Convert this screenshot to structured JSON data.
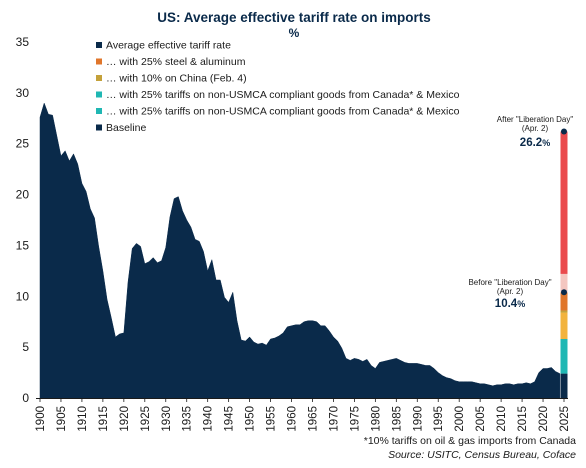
{
  "chart_data": {
    "type": "area",
    "title": "US: Average effective tariff rate on imports",
    "subtitle": "%",
    "ylim": [
      0,
      35
    ],
    "yticks": [
      0,
      5,
      10,
      15,
      20,
      25,
      30,
      35
    ],
    "xlim": [
      1900,
      2025
    ],
    "xticks": [
      1900,
      1905,
      1910,
      1915,
      1920,
      1925,
      1930,
      1935,
      1940,
      1945,
      1950,
      1955,
      1960,
      1965,
      1970,
      1975,
      1980,
      1985,
      1990,
      1995,
      2000,
      2005,
      2010,
      2015,
      2020,
      2025
    ],
    "grid": false,
    "legend_position": "top-left",
    "series": [
      {
        "name": "Average effective tariff rate",
        "color": "#0a2a4a",
        "x": [
          1900,
          1901,
          1902,
          1903,
          1904,
          1905,
          1906,
          1907,
          1908,
          1909,
          1910,
          1911,
          1912,
          1913,
          1914,
          1915,
          1916,
          1917,
          1918,
          1919,
          1920,
          1921,
          1922,
          1923,
          1924,
          1925,
          1926,
          1927,
          1928,
          1929,
          1930,
          1931,
          1932,
          1933,
          1934,
          1935,
          1936,
          1937,
          1938,
          1939,
          1940,
          1941,
          1942,
          1943,
          1944,
          1945,
          1946,
          1947,
          1948,
          1949,
          1950,
          1951,
          1952,
          1953,
          1954,
          1955,
          1956,
          1957,
          1958,
          1959,
          1960,
          1961,
          1962,
          1963,
          1964,
          1965,
          1966,
          1967,
          1968,
          1969,
          1970,
          1971,
          1972,
          1973,
          1974,
          1975,
          1976,
          1977,
          1978,
          1979,
          1980,
          1981,
          1982,
          1983,
          1984,
          1985,
          1986,
          1987,
          1988,
          1989,
          1990,
          1991,
          1992,
          1993,
          1994,
          1995,
          1996,
          1997,
          1998,
          1999,
          2000,
          2001,
          2002,
          2003,
          2004,
          2005,
          2006,
          2007,
          2008,
          2009,
          2010,
          2011,
          2012,
          2013,
          2014,
          2015,
          2016,
          2017,
          2018,
          2019,
          2020,
          2021,
          2022,
          2023,
          2024
        ],
        "y": [
          27.6,
          29.0,
          27.9,
          27.8,
          25.8,
          23.8,
          24.3,
          23.3,
          24.0,
          23.0,
          21.1,
          20.3,
          18.6,
          17.7,
          14.9,
          12.5,
          9.7,
          7.9,
          6.0,
          6.3,
          6.4,
          11.4,
          14.7,
          15.2,
          14.9,
          13.2,
          13.4,
          13.8,
          13.3,
          13.5,
          14.8,
          17.8,
          19.6,
          19.8,
          18.4,
          17.5,
          16.8,
          15.6,
          15.4,
          14.4,
          12.5,
          13.6,
          11.6,
          11.6,
          9.9,
          9.4,
          10.4,
          7.6,
          5.7,
          5.6,
          6.0,
          5.5,
          5.3,
          5.4,
          5.2,
          5.8,
          5.9,
          6.1,
          6.4,
          7.0,
          7.1,
          7.2,
          7.2,
          7.5,
          7.6,
          7.6,
          7.5,
          7.1,
          7.1,
          6.6,
          6.0,
          5.6,
          4.9,
          3.9,
          3.7,
          3.9,
          3.8,
          3.6,
          3.8,
          3.2,
          2.9,
          3.5,
          3.6,
          3.7,
          3.8,
          3.9,
          3.7,
          3.5,
          3.4,
          3.4,
          3.4,
          3.3,
          3.2,
          3.2,
          2.9,
          2.5,
          2.2,
          2.0,
          1.9,
          1.7,
          1.6,
          1.6,
          1.6,
          1.6,
          1.5,
          1.4,
          1.4,
          1.3,
          1.2,
          1.3,
          1.3,
          1.4,
          1.4,
          1.3,
          1.4,
          1.4,
          1.5,
          1.4,
          1.6,
          2.5,
          2.9,
          2.9,
          3.0,
          2.6,
          2.4
        ]
      }
    ],
    "stacked_bar": {
      "x": 2025,
      "segments": [
        {
          "name": "Baseline",
          "color": "#0a2a4a",
          "from": 0.0,
          "to": 2.4
        },
        {
          "name": "… with 25% tariffs on non-USMCA compliant goods from Canada* & Mexico",
          "color": "#1fb7b3",
          "from": 2.4,
          "to": 5.8
        },
        {
          "name": "… with 25% tariffs on non-USMCA compliant goods from Canada* & Mexico",
          "color": "#f2b33d",
          "from": 5.8,
          "to": 8.4
        },
        {
          "name": "… with 10% on China (Feb. 4)",
          "color": "#c4a13a",
          "from": 8.4,
          "to": 8.6
        },
        {
          "name": "… with 25% steel & aluminum",
          "color": "#e0762b",
          "from": 8.6,
          "to": 10.4
        },
        {
          "name": "After \"Liberation Day\"",
          "color": "#f4c6c0",
          "from": 10.4,
          "to": 12.2
        },
        {
          "name": "After \"Liberation Day\"",
          "color": "#ea4a4d",
          "from": 12.2,
          "to": 26.2
        }
      ]
    },
    "markers": [
      {
        "x": 2025,
        "y": 26.2,
        "color": "#0a2a4a"
      },
      {
        "x": 2025,
        "y": 10.4,
        "color": "#0a2a4a"
      }
    ],
    "legend": [
      {
        "label": "Average effective tariff rate",
        "color": "#0a2a4a"
      },
      {
        "label": "… with 25% steel & aluminum",
        "color": "#e0762b"
      },
      {
        "label": "… with 10% on China (Feb. 4)",
        "color": "#c4a13a"
      },
      {
        "label": "… with 25% tariffs on non-USMCA compliant goods from Canada* & Mexico",
        "color": "#1fb7b3"
      },
      {
        "label": "… with 25% tariffs on non-USMCA compliant goods from Canada* & Mexico",
        "color": "#1fb7b3"
      },
      {
        "label": "Baseline",
        "color": "#0a2a4a"
      }
    ],
    "annotations": {
      "after": {
        "line1": "After \"Liberation Day\"",
        "line2": "(Apr. 2)",
        "value": "26.2",
        "unit": "%"
      },
      "before": {
        "line1": "Before \"Liberation Day\"",
        "line2": "(Apr. 2)",
        "value": "10.4",
        "unit": "%"
      }
    },
    "footnote": "*10% tariffs on oil & gas imports from Canada",
    "source": "Source: USITC, Census Bureau, Coface"
  }
}
